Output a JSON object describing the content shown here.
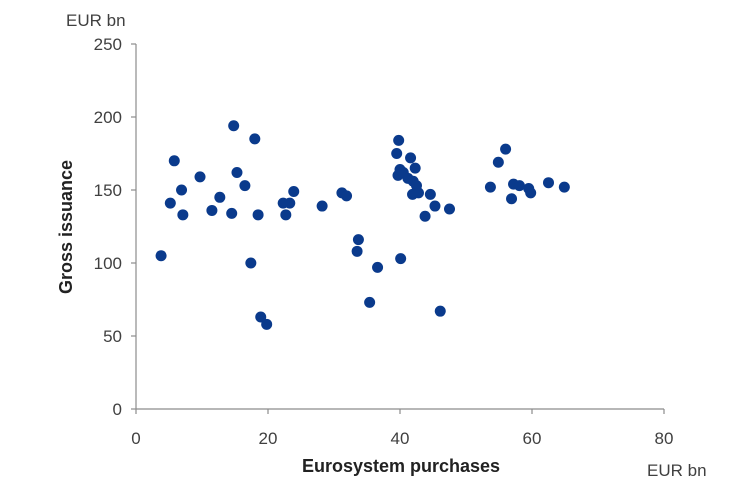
{
  "chart_data": {
    "type": "scatter",
    "xlabel": "Eurosystem purchases",
    "ylabel": "Gross issuance",
    "x_unit": "EUR bn",
    "y_unit": "EUR bn",
    "xlim": [
      0,
      80
    ],
    "ylim": [
      0,
      250
    ],
    "x_ticks": [
      "0",
      "20",
      "40",
      "60",
      "80"
    ],
    "y_ticks": [
      "0",
      "50",
      "100",
      "150",
      "200",
      "250"
    ],
    "grid": false,
    "marker_color": "#0a3a8c",
    "points": [
      [
        3.8,
        105
      ],
      [
        5.2,
        141
      ],
      [
        5.8,
        170
      ],
      [
        6.9,
        150
      ],
      [
        7.1,
        133
      ],
      [
        9.7,
        159
      ],
      [
        11.5,
        136
      ],
      [
        12.7,
        145
      ],
      [
        14.5,
        134
      ],
      [
        14.8,
        194
      ],
      [
        15.3,
        162
      ],
      [
        16.5,
        153
      ],
      [
        17.4,
        100
      ],
      [
        18.0,
        185
      ],
      [
        18.5,
        133
      ],
      [
        18.9,
        63
      ],
      [
        19.8,
        58
      ],
      [
        22.3,
        141
      ],
      [
        22.7,
        133
      ],
      [
        23.3,
        141
      ],
      [
        23.9,
        149
      ],
      [
        28.2,
        139
      ],
      [
        31.2,
        148
      ],
      [
        31.9,
        146
      ],
      [
        33.5,
        108
      ],
      [
        33.7,
        116
      ],
      [
        35.4,
        73
      ],
      [
        36.6,
        97
      ],
      [
        39.5,
        175
      ],
      [
        39.7,
        160
      ],
      [
        39.8,
        184
      ],
      [
        40.0,
        164
      ],
      [
        40.1,
        103
      ],
      [
        40.5,
        162
      ],
      [
        41.2,
        158
      ],
      [
        41.6,
        172
      ],
      [
        41.9,
        147
      ],
      [
        42.0,
        156
      ],
      [
        42.3,
        165
      ],
      [
        42.5,
        153
      ],
      [
        42.8,
        148
      ],
      [
        43.8,
        132
      ],
      [
        44.6,
        147
      ],
      [
        45.3,
        139
      ],
      [
        46.1,
        67
      ],
      [
        47.5,
        137
      ],
      [
        53.7,
        152
      ],
      [
        54.9,
        169
      ],
      [
        56.0,
        178
      ],
      [
        56.9,
        144
      ],
      [
        57.2,
        154
      ],
      [
        58.1,
        153
      ],
      [
        59.5,
        151
      ],
      [
        59.8,
        148
      ],
      [
        62.5,
        155
      ],
      [
        64.9,
        152
      ]
    ]
  }
}
